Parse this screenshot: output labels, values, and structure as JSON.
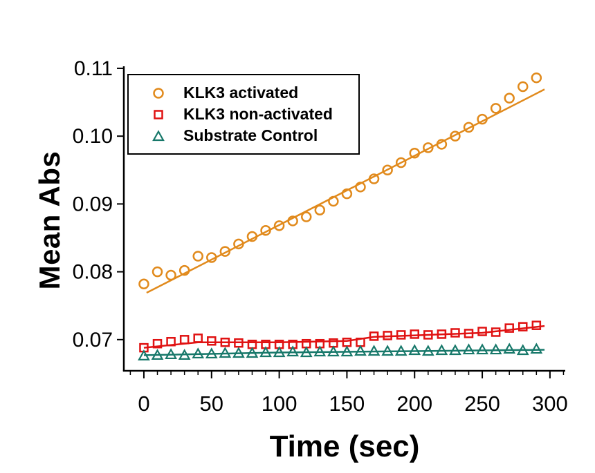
{
  "figure": {
    "background": "#ffffff",
    "axis_color": "#000000"
  },
  "chart_data": {
    "type": "scatter",
    "title": "",
    "xlabel": "Time (sec)",
    "ylabel": "Mean Abs",
    "xlim": [
      -14.8,
      311.3
    ],
    "ylim": [
      0.0654,
      0.1103
    ],
    "grid": false,
    "legend_position": "upper-left-inside",
    "x_ticks": [
      {
        "value": 0,
        "label": "0"
      },
      {
        "value": 50,
        "label": "50"
      },
      {
        "value": 100,
        "label": "100"
      },
      {
        "value": 150,
        "label": "150"
      },
      {
        "value": 200,
        "label": "200"
      },
      {
        "value": 250,
        "label": "250"
      },
      {
        "value": 300,
        "label": "300"
      }
    ],
    "x_minor_tick_step": 10,
    "x_minor_tick_range": [
      -10,
      310
    ],
    "y_ticks": [
      {
        "value": 0.07,
        "label": "0.07"
      },
      {
        "value": 0.08,
        "label": "0.08"
      },
      {
        "value": 0.09,
        "label": "0.09"
      },
      {
        "value": 0.1,
        "label": "0.10"
      },
      {
        "value": 0.11,
        "label": "0.11"
      }
    ],
    "x": [
      0,
      10,
      20,
      30,
      40,
      50,
      60,
      70,
      80,
      90,
      100,
      110,
      120,
      130,
      140,
      150,
      160,
      170,
      180,
      190,
      200,
      210,
      220,
      230,
      240,
      250,
      260,
      270,
      280,
      290
    ],
    "series": [
      {
        "name": "KLK3 activated",
        "marker": "circle",
        "color": "#E18A1C",
        "values": [
          0.0782,
          0.08,
          0.0795,
          0.0802,
          0.0823,
          0.0821,
          0.083,
          0.0841,
          0.0852,
          0.0861,
          0.0868,
          0.0875,
          0.0881,
          0.0891,
          0.0904,
          0.0915,
          0.0925,
          0.0937,
          0.095,
          0.0961,
          0.0975,
          0.0983,
          0.0988,
          0.1,
          0.1013,
          0.1025,
          0.1041,
          0.1056,
          0.1073,
          0.1086
        ],
        "trend": {
          "x": [
            2,
            296
          ],
          "y": [
            0.0769,
            0.1069
          ]
        }
      },
      {
        "name": "KLK3 non-activated",
        "marker": "square",
        "color": "#E01212",
        "values": [
          0.0688,
          0.0694,
          0.0697,
          0.07,
          0.0702,
          0.0698,
          0.0696,
          0.0695,
          0.0693,
          0.0693,
          0.0693,
          0.0693,
          0.0694,
          0.0694,
          0.0695,
          0.0696,
          0.0696,
          0.0705,
          0.0706,
          0.0707,
          0.0708,
          0.0707,
          0.0708,
          0.071,
          0.0709,
          0.0712,
          0.0711,
          0.0717,
          0.0719,
          0.0721
        ],
        "trend": {
          "x": [
            0,
            40,
            100,
            150,
            170,
            210,
            250,
            296
          ],
          "y": [
            0.0688,
            0.0696,
            0.0696,
            0.0698,
            0.0704,
            0.0707,
            0.071,
            0.072
          ]
        }
      },
      {
        "name": "Substrate Control",
        "marker": "triangle",
        "color": "#17786A",
        "values": [
          0.0676,
          0.0677,
          0.0678,
          0.0677,
          0.0679,
          0.0679,
          0.068,
          0.068,
          0.068,
          0.0681,
          0.0681,
          0.0682,
          0.0681,
          0.0682,
          0.0682,
          0.0682,
          0.0683,
          0.0683,
          0.0683,
          0.0683,
          0.0684,
          0.0683,
          0.0684,
          0.0684,
          0.0685,
          0.0685,
          0.0685,
          0.0686,
          0.0684,
          0.0686
        ],
        "trend": {
          "x": [
            0,
            100,
            200,
            296
          ],
          "y": [
            0.0677,
            0.0681,
            0.0683,
            0.0685
          ]
        }
      }
    ]
  }
}
